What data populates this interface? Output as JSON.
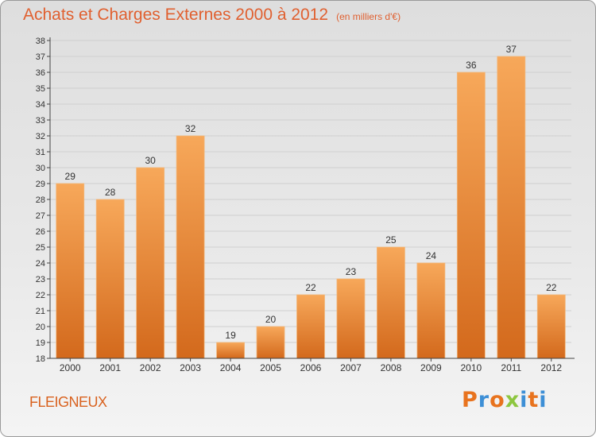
{
  "header": {
    "title": "Achats et Charges Externes 2000 à 2012",
    "unit": "(en milliers d'€)"
  },
  "footer": {
    "commune": "FLEIGNEUX",
    "logo_text": "Proxiti",
    "logo_colors": [
      "#e8731e",
      "#3d8fd6",
      "#e8731e",
      "#8dc63f",
      "#3d8fd6",
      "#e8731e",
      "#3d8fd6"
    ]
  },
  "colors": {
    "bar_top": "#f7a85a",
    "bar_bottom": "#d3691c",
    "axis": "#444444",
    "grid": "#cfcfcf",
    "title": "#e06030"
  },
  "chart_data": {
    "type": "bar",
    "title": "Achats et Charges Externes 2000 à 2012",
    "subtitle": "(en milliers d'€)",
    "xlabel": "",
    "ylabel": "",
    "categories": [
      "2000",
      "2001",
      "2002",
      "2003",
      "2004",
      "2005",
      "2006",
      "2007",
      "2008",
      "2009",
      "2010",
      "2011",
      "2012"
    ],
    "values": [
      29,
      28,
      30,
      32,
      19,
      20,
      22,
      23,
      25,
      24,
      36,
      37,
      22
    ],
    "ylim": [
      18,
      38
    ],
    "yticks": [
      18,
      19,
      20,
      21,
      22,
      23,
      24,
      25,
      26,
      27,
      28,
      29,
      30,
      31,
      32,
      33,
      34,
      35,
      36,
      37,
      38
    ],
    "grid": true
  }
}
